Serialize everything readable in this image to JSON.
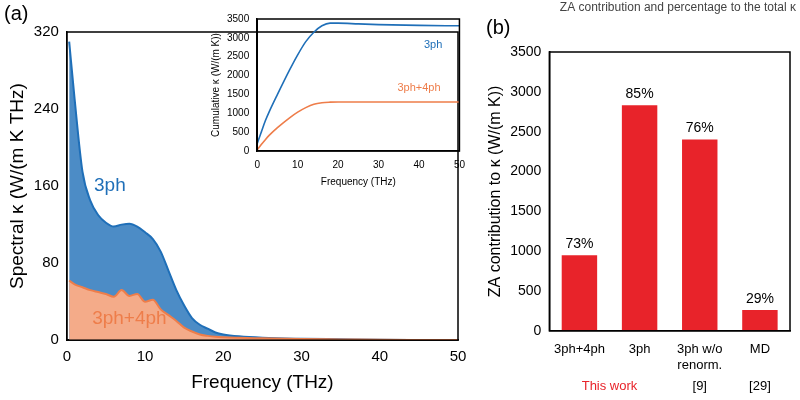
{
  "chart_data": [
    {
      "type": "area",
      "panel_label": "(a)",
      "x_label": "Frequency (THz)",
      "y_label": "Spectral κ (W/(m K THz)",
      "x": [
        0.3,
        1,
        2,
        3,
        4,
        5,
        6,
        7,
        8,
        9,
        10,
        11,
        12,
        13,
        14,
        15,
        16,
        17,
        18,
        19,
        20,
        22,
        25,
        30,
        35,
        40,
        45,
        50
      ],
      "series": [
        {
          "name": "3ph",
          "color": "#1f6fb8",
          "values": [
            310,
            250,
            175,
            145,
            130,
            122,
            118,
            120,
            121,
            118,
            112,
            105,
            92,
            72,
            52,
            36,
            23,
            16,
            12,
            8,
            6,
            4,
            2.5,
            1.5,
            1,
            0.5,
            0.3,
            0.2
          ]
        },
        {
          "name": "3ph+4ph",
          "color": "#ee7d4a",
          "values": [
            62,
            58,
            55,
            52,
            50,
            48,
            45,
            52,
            46,
            48,
            40,
            42,
            32,
            26,
            20,
            13,
            9,
            6,
            4.5,
            3.5,
            3,
            2.5,
            2,
            1.2,
            0.8,
            0.4,
            0.2,
            0.1
          ]
        }
      ],
      "xlim": [
        0,
        50
      ],
      "ylim": [
        0,
        320
      ],
      "xticks": [
        0,
        10,
        20,
        30,
        40,
        50
      ],
      "yticks": [
        0,
        80,
        160,
        240,
        320
      ],
      "grid": false
    },
    {
      "type": "line",
      "x_label": "Frequency (THz)",
      "y_label": "Cumulative κ (W/(m K))",
      "x": [
        0,
        1,
        2,
        3,
        5,
        8,
        10,
        12,
        14,
        16,
        18,
        20,
        25,
        30,
        40,
        50
      ],
      "series": [
        {
          "name": "3ph",
          "color": "#1f6fb8",
          "values": [
            200,
            500,
            800,
            1050,
            1500,
            2150,
            2550,
            2900,
            3150,
            3320,
            3390,
            3390,
            3370,
            3350,
            3330,
            3320
          ]
        },
        {
          "name": "3ph+4ph",
          "color": "#ee7d4a",
          "values": [
            30,
            170,
            300,
            420,
            620,
            880,
            1030,
            1150,
            1240,
            1280,
            1295,
            1300,
            1300,
            1300,
            1300,
            1300
          ]
        }
      ],
      "xlim": [
        0,
        50
      ],
      "ylim": [
        0,
        3500
      ],
      "xticks": [
        0,
        10,
        20,
        30,
        40,
        50
      ],
      "yticks": [
        0,
        500,
        1000,
        1500,
        2000,
        2500,
        3000,
        3500
      ],
      "grid": false
    },
    {
      "type": "bar",
      "panel_label": "(b)",
      "title": "ZA contribution and percentage to the total κ",
      "y_label": "ZA contribution to κ (W/(m K))",
      "categories": [
        "3ph+4ph",
        "3ph",
        "3ph w/o renorm.",
        "MD"
      ],
      "values": [
        950,
        2830,
        2400,
        260
      ],
      "percent_labels": [
        "73%",
        "85%",
        "76%",
        "29%"
      ],
      "color": "#e8232a",
      "sources": [
        {
          "text": "This work",
          "categories": [
            "3ph+4ph",
            "3ph"
          ],
          "color": "#e8232a"
        },
        {
          "text": "[9]",
          "categories": [
            "3ph w/o renorm."
          ],
          "color": "#000000"
        },
        {
          "text": "[29]",
          "categories": [
            "MD"
          ],
          "color": "#000000"
        }
      ],
      "ylim": [
        0,
        3500
      ],
      "yticks": [
        0,
        500,
        1000,
        1500,
        2000,
        2500,
        3000,
        3500
      ],
      "grid": false
    }
  ]
}
